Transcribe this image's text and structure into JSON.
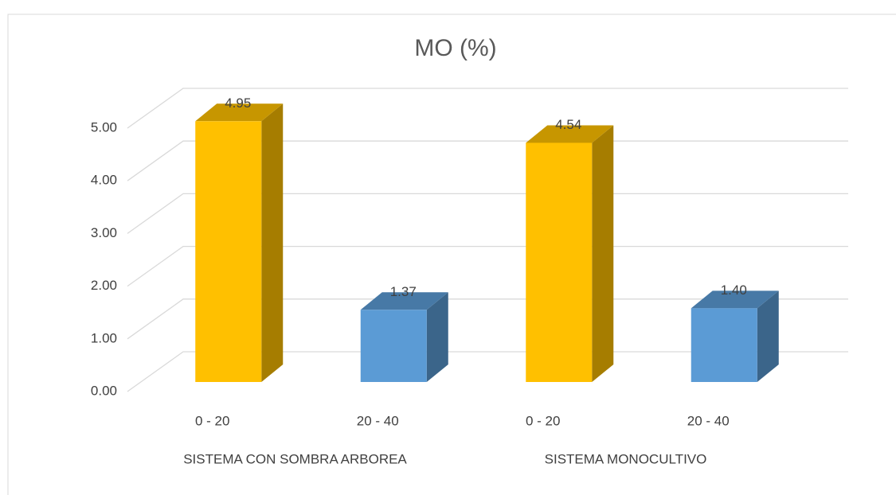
{
  "chart_data": {
    "type": "bar3d",
    "title": "MO (%)",
    "categories": [
      "0 - 20",
      "20 - 40",
      "0 - 20",
      "20 - 40"
    ],
    "groups": [
      "SISTEMA CON SOMBRA ARBOREA",
      "SISTEMA MONOCULTIVO"
    ],
    "values": [
      4.95,
      1.37,
      4.54,
      1.4
    ],
    "value_labels": [
      "4.95",
      "1.37",
      "4.54",
      "1.40"
    ],
    "colors": [
      "#FFC000",
      "#5B9BD5",
      "#FFC000",
      "#5B9BD5"
    ],
    "ylim": [
      0,
      5
    ],
    "yticks": [
      {
        "value": 0,
        "label": "0.00"
      },
      {
        "value": 1,
        "label": "1.00"
      },
      {
        "value": 2,
        "label": "2.00"
      },
      {
        "value": 3,
        "label": "3.00"
      },
      {
        "value": 4,
        "label": "4.00"
      },
      {
        "value": 5,
        "label": "5.00"
      }
    ],
    "grid": true
  }
}
